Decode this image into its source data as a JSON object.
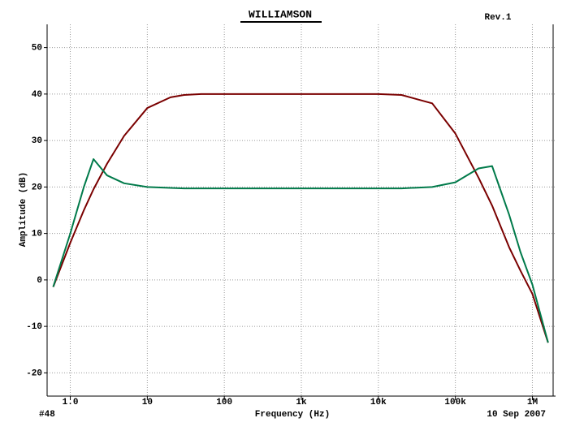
{
  "chart_data": {
    "type": "line",
    "title": "WILLIAMSON",
    "subtitle": "Rev.1",
    "annotations": [
      "#48",
      "10 Sep 2007"
    ],
    "x_label": "Frequency (Hz)",
    "y_label": "Amplitude (dB)",
    "x_scale": "log",
    "grid": true,
    "xlim": [
      0.5,
      2000000
    ],
    "ylim": [
      -25,
      55
    ],
    "xticks": [
      {
        "value": 1,
        "label": "1.0"
      },
      10,
      100,
      {
        "value": 1000,
        "label": "1k"
      },
      {
        "value": 10000,
        "label": "10k"
      },
      {
        "value": 100000,
        "label": "100k"
      },
      {
        "value": 1000000,
        "label": "1M"
      }
    ],
    "yticks": [
      -20,
      -10,
      0,
      10,
      20,
      30,
      40,
      50
    ],
    "x": [
      0.6,
      1,
      1.5,
      2,
      3,
      5,
      10,
      20,
      30,
      50,
      100,
      1000,
      10000,
      20000,
      50000,
      100000,
      200000,
      300000,
      500000,
      700000,
      1000000,
      1600000
    ],
    "series": [
      {
        "color": "#7a0000",
        "values": [
          -1.5,
          8,
          15,
          19.5,
          25,
          31,
          37,
          39.3,
          39.8,
          40,
          40,
          40,
          40,
          39.8,
          38,
          31.5,
          22,
          16,
          7,
          2,
          -3,
          -13.5
        ]
      },
      {
        "color": "#007a4a",
        "values": [
          -1.5,
          10,
          20,
          26,
          22.5,
          20.8,
          20,
          19.8,
          19.7,
          19.7,
          19.7,
          19.7,
          19.7,
          19.7,
          20,
          21,
          24,
          24.5,
          14,
          6,
          -1,
          -13.5
        ]
      }
    ]
  }
}
